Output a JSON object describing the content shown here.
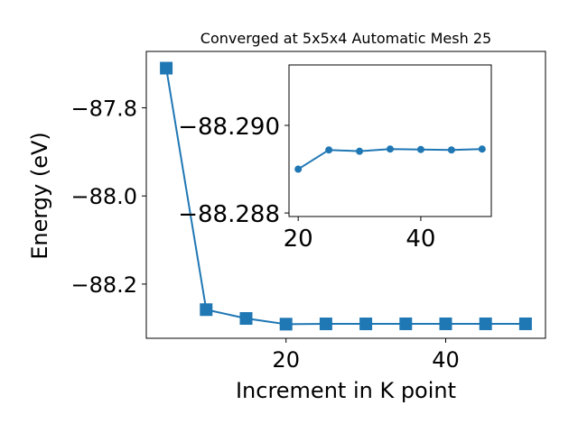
{
  "chart_data": [
    {
      "type": "line",
      "title": "Converged at 5x5x4 Automatic Mesh 25",
      "xlabel": "Increment in K point",
      "ylabel": "Energy (eV)",
      "xlim": [
        2.5,
        52.5
      ],
      "ylim": [
        -88.323,
        -87.672
      ],
      "xticks": [
        20,
        40
      ],
      "yticks": [
        -87.8,
        -88.0,
        -88.2
      ],
      "xtick_labels": [
        "20",
        "40"
      ],
      "ytick_labels": [
        "−87.8",
        "−88.0",
        "−88.2"
      ],
      "grid": false,
      "marker": "square",
      "color": "#1f77b4",
      "series": [
        {
          "x": [
            5,
            10,
            15,
            20,
            25,
            30,
            35,
            40,
            45,
            50
          ],
          "y": [
            -87.71,
            -88.258,
            -88.278,
            -88.2909,
            -88.2903,
            -88.2903,
            -88.2902,
            -88.2902,
            -88.2902,
            -88.2902
          ]
        }
      ]
    },
    {
      "type": "line",
      "title": "",
      "xlabel": "",
      "ylabel": "",
      "xlim": [
        18.5,
        51.5
      ],
      "ylim": [
        -88.28792,
        -88.29138
      ],
      "xticks": [
        20,
        40
      ],
      "yticks": [
        -88.29,
        -88.288
      ],
      "xtick_labels": [
        "20",
        "40"
      ],
      "ytick_labels": [
        "−88.290",
        "−88.288"
      ],
      "grid": false,
      "marker": "circle",
      "color": "#1f77b4",
      "series": [
        {
          "x": [
            20,
            25,
            30,
            35,
            40,
            45,
            50
          ],
          "y": [
            -88.289,
            -88.28944,
            -88.28941,
            -88.28946,
            -88.28945,
            -88.28944,
            -88.28946
          ]
        }
      ]
    }
  ]
}
